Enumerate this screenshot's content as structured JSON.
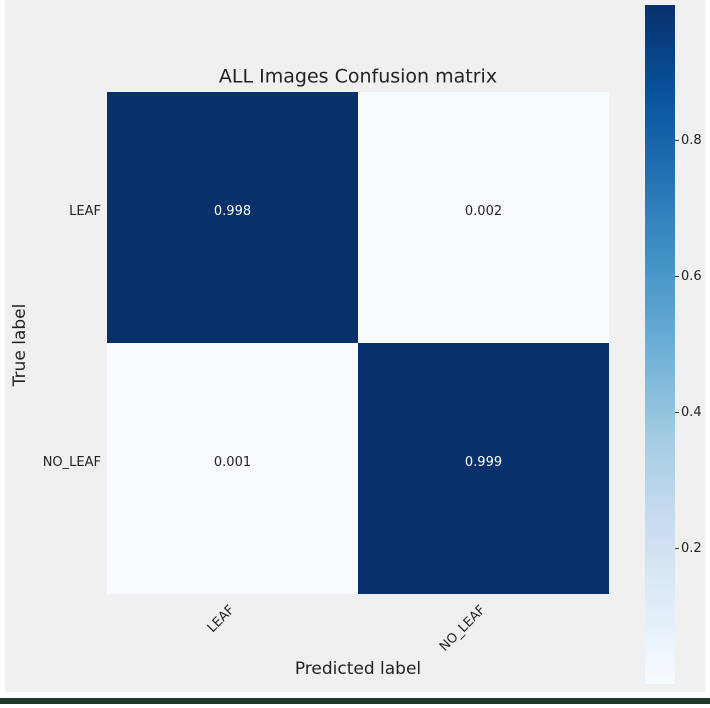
{
  "chart_data": {
    "type": "heatmap",
    "title": "ALL Images Confusion matrix",
    "xlabel": "Predicted label",
    "ylabel": "True label",
    "x_categories": [
      "LEAF",
      "NO_LEAF"
    ],
    "y_categories": [
      "LEAF",
      "NO_LEAF"
    ],
    "values": [
      [
        0.998,
        0.002
      ],
      [
        0.001,
        0.999
      ]
    ],
    "colormap": "Blues",
    "clim": [
      0.001,
      0.999
    ],
    "colorbar_ticks": [
      0.2,
      0.4,
      0.6,
      0.8
    ]
  }
}
